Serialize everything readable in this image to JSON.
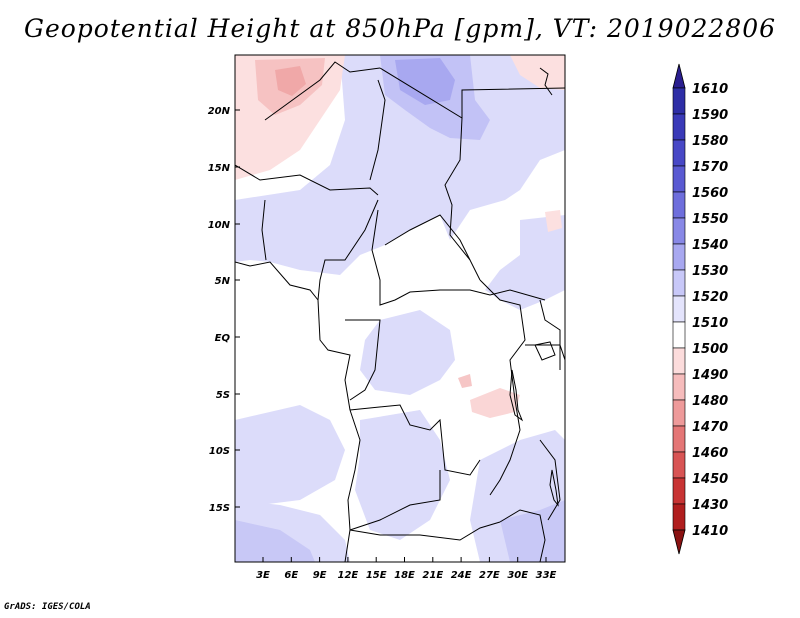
{
  "title": "Geopotential Height at 850hPa [gpm], VT: 2019022806",
  "credit": "GrADS: IGES/COLA",
  "map": {
    "lat_labels": [
      "20N",
      "15N",
      "10N",
      "5N",
      "EQ",
      "5S",
      "10S",
      "15S"
    ],
    "lon_labels": [
      "3E",
      "6E",
      "9E",
      "12E",
      "15E",
      "18E",
      "21E",
      "24E",
      "27E",
      "30E",
      "33E"
    ]
  },
  "colorbar": {
    "levels": [
      "1610",
      "1590",
      "1580",
      "1570",
      "1560",
      "1550",
      "1540",
      "1530",
      "1520",
      "1510",
      "1500",
      "1490",
      "1480",
      "1470",
      "1460",
      "1450",
      "1430",
      "1410"
    ],
    "colors": [
      "#2a1e8f",
      "#2e2ea6",
      "#3a3ab8",
      "#4848c6",
      "#5a5ad2",
      "#6e6edc",
      "#8888e6",
      "#a8a8f0",
      "#c8c8f8",
      "#e4e4fc",
      "#ffffff",
      "#fcdcdc",
      "#f6bcbc",
      "#ee9a9a",
      "#e47676",
      "#d85454",
      "#c83434",
      "#b01e1e",
      "#8a1212"
    ]
  }
}
